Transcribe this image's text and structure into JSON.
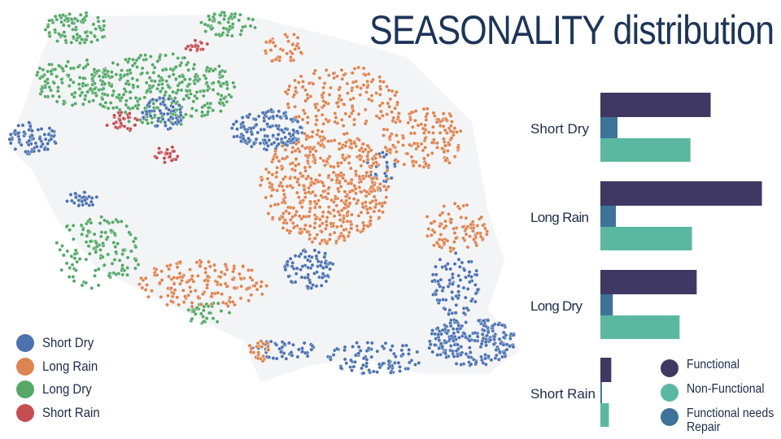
{
  "title": "SEASONALITY distribution",
  "map_legend": [
    {
      "label": "Short Dry",
      "color": "#4c72b0"
    },
    {
      "label": "Long Rain",
      "color": "#dd8452"
    },
    {
      "label": "Long Dry",
      "color": "#55a868"
    },
    {
      "label": "Short Rain",
      "color": "#c44e52"
    }
  ],
  "status_legend": [
    {
      "label": "Functional",
      "color": "#3e3862"
    },
    {
      "label": "Non-Functional",
      "color": "#5bb8a0"
    },
    {
      "label": "Functional needs Repair",
      "color": "#3f7298"
    }
  ],
  "chart_data": [
    {
      "type": "scatter",
      "title": "",
      "series": [
        {
          "name": "Short Dry",
          "color": "#4c72b0"
        },
        {
          "name": "Long Rain",
          "color": "#dd8452"
        },
        {
          "name": "Long Dry",
          "color": "#55a868"
        },
        {
          "name": "Short Rain",
          "color": "#c44e52"
        }
      ],
      "legend": "bottom-left",
      "grid": false
    },
    {
      "type": "bar",
      "orientation": "horizontal",
      "categories": [
        "Short Dry",
        "Long Rain",
        "Long Dry",
        "Short Rain"
      ],
      "series": [
        {
          "name": "Functional",
          "color": "#3e3862",
          "values": [
            142,
            208,
            124,
            14
          ]
        },
        {
          "name": "Functional needs Repair",
          "color": "#3f7298",
          "values": [
            22,
            20,
            16,
            2
          ]
        },
        {
          "name": "Non-Functional",
          "color": "#5bb8a0",
          "values": [
            116,
            118,
            102,
            11
          ]
        }
      ],
      "xlim": [
        0,
        220
      ],
      "legend": "bottom-right",
      "grid": false
    }
  ]
}
